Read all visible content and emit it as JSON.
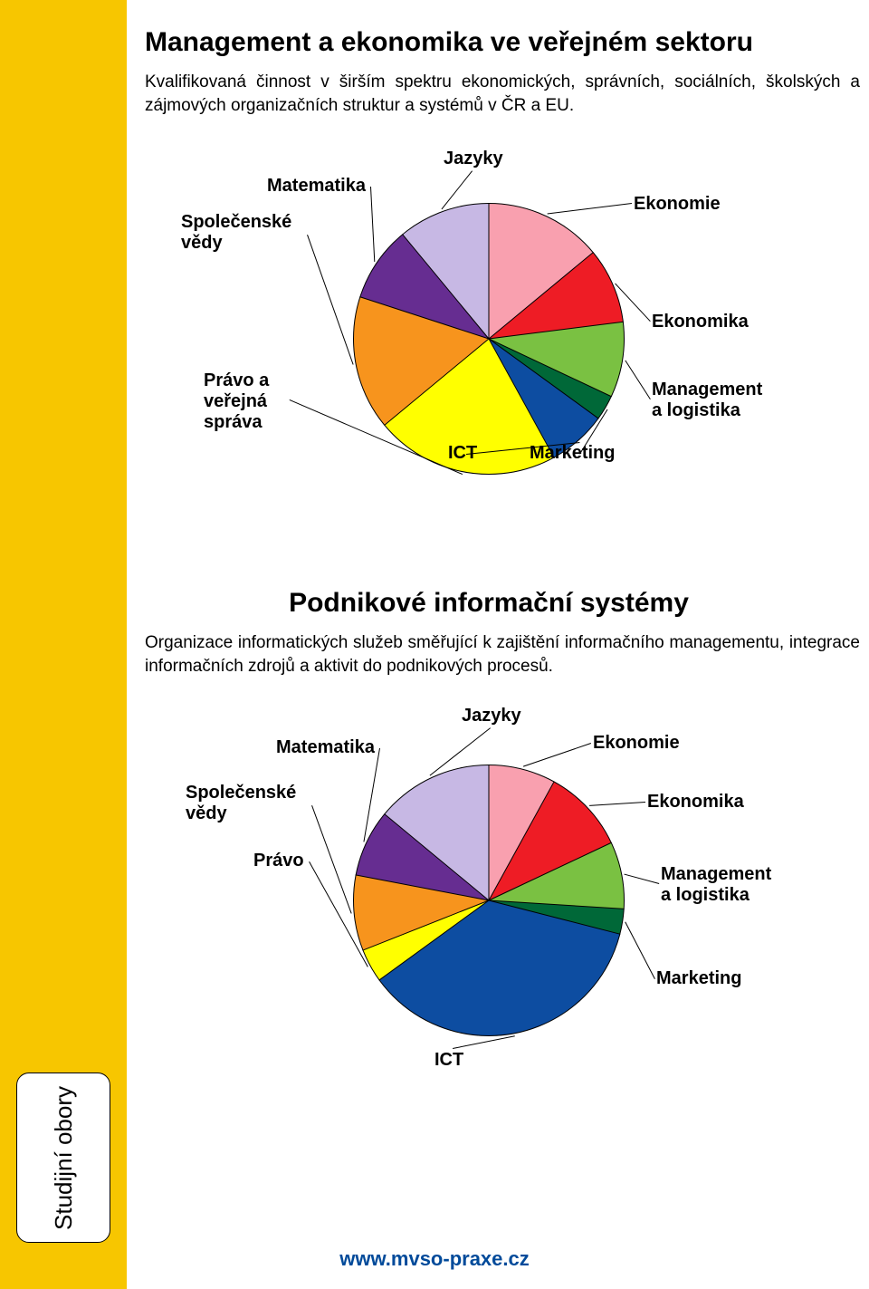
{
  "sidebar_color": "#f7c600",
  "footer_url": "www.mvso-praxe.cz",
  "vtab_label": "Studijní obory",
  "section1": {
    "heading": "Management a ekonomika ve veřejném sektoru",
    "desc": "Kvalifikovaná činnost v širším spektru ekonomických, správních, sociálních, školských a zájmových organizačních struktur a systémů v ČR a EU.",
    "chart": {
      "type": "pie",
      "diameter": 300,
      "stroke": "#000000",
      "slices": [
        {
          "label": "Ekonomie",
          "value": 14,
          "color": "#f9a0af"
        },
        {
          "label": "Ekonomika",
          "value": 9,
          "color": "#ee1c25"
        },
        {
          "label": "Management a logistika",
          "value": 9,
          "color": "#7ac142"
        },
        {
          "label": "Marketing",
          "value": 3,
          "color": "#006838"
        },
        {
          "label": "ICT",
          "value": 7,
          "color": "#0d4da1"
        },
        {
          "label": "Právo a veřejná správa",
          "value": 22,
          "color": "#ffff00"
        },
        {
          "label": "Společenské vědy",
          "value": 16,
          "color": "#f7941d"
        },
        {
          "label": "Matematika",
          "value": 9,
          "color": "#662d91"
        },
        {
          "label": "Jazyky",
          "value": 11,
          "color": "#c7b8e4"
        }
      ],
      "label_fontsize": 20
    }
  },
  "section2": {
    "heading": "Podnikové informační systémy",
    "desc": "Organizace informatických služeb směřující k zajištění informačního managementu, integrace informačních zdrojů a aktivit do podnikových procesů.",
    "chart": {
      "type": "pie",
      "diameter": 300,
      "stroke": "#000000",
      "slices": [
        {
          "label": "Ekonomie",
          "value": 8,
          "color": "#f9a0af"
        },
        {
          "label": "Ekonomika",
          "value": 10,
          "color": "#ee1c25"
        },
        {
          "label": "Management a logistika",
          "value": 8,
          "color": "#7ac142"
        },
        {
          "label": "Marketing",
          "value": 3,
          "color": "#006838"
        },
        {
          "label": "ICT",
          "value": 36,
          "color": "#0d4da1"
        },
        {
          "label": "Právo",
          "value": 4,
          "color": "#ffff00"
        },
        {
          "label": "Společenské vědy",
          "value": 9,
          "color": "#f7941d"
        },
        {
          "label": "Matematika",
          "value": 8,
          "color": "#662d91"
        },
        {
          "label": "Jazyky",
          "value": 14,
          "color": "#c7b8e4"
        }
      ],
      "label_fontsize": 20
    }
  }
}
